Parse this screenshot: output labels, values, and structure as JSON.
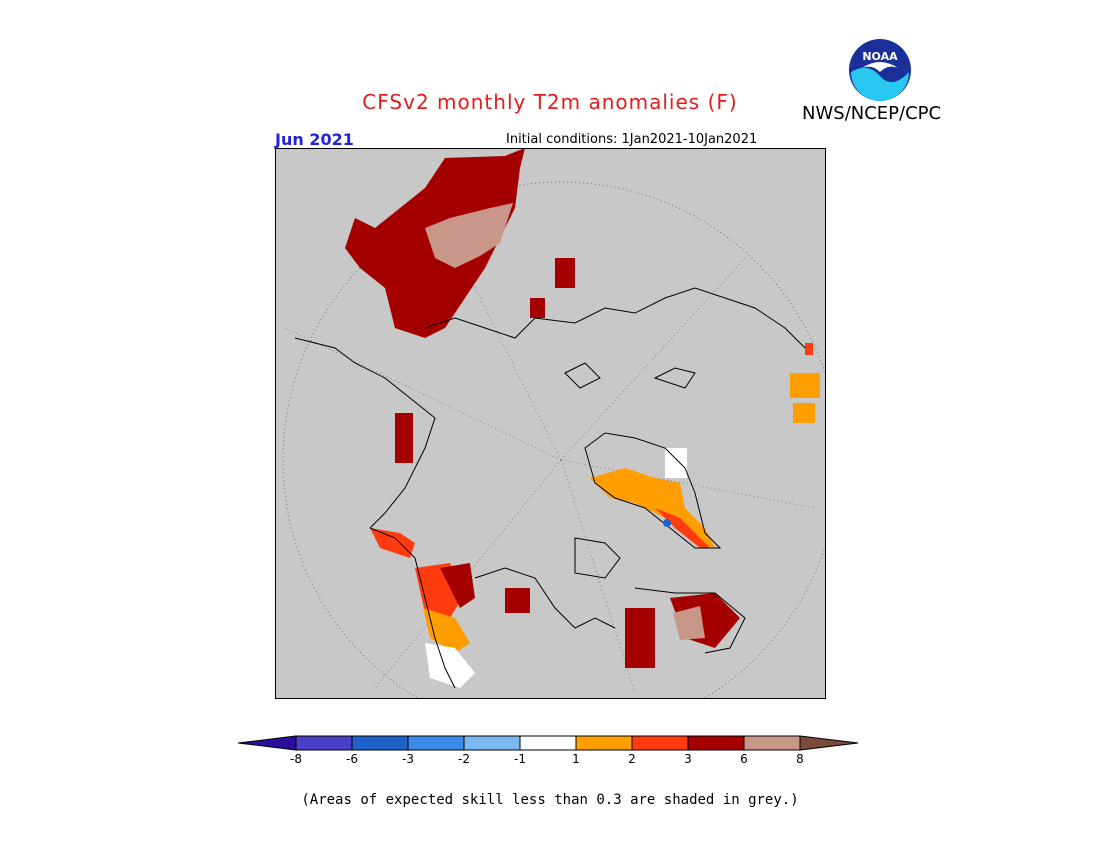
{
  "header": {
    "title": "CFSv2 monthly T2m anomalies (F)",
    "agency": "NWS/NCEP/CPC",
    "logo_text": "NOAA",
    "month": "Jun 2021",
    "initial_conditions": "Initial conditions: 1Jan2021-10Jan2021"
  },
  "legend": {
    "colors": [
      "#2a0e9e",
      "#4b3fc6",
      "#1f62cc",
      "#3b8ae6",
      "#7cb8f0",
      "#ffffff",
      "#ff9e00",
      "#ff3b10",
      "#a50000",
      "#c9968a",
      "#7a4a3a"
    ],
    "labels": [
      "-8",
      "-6",
      "-3",
      "-2",
      "-1",
      "1",
      "2",
      "3",
      "6",
      "8"
    ]
  },
  "footnote": "(Areas of expected skill less than 0.3 are shaded in grey.)",
  "map": {
    "background": "#c8c8c8",
    "skill_grey": "#c8c8c8"
  }
}
